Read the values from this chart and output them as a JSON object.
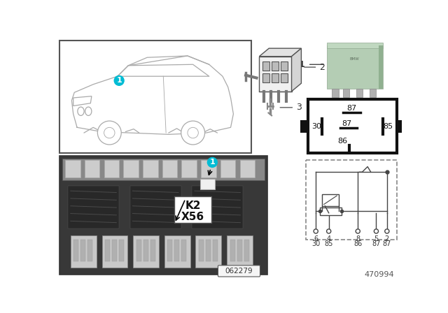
{
  "bg_color": "#ffffff",
  "teal_color": "#00bcd4",
  "relay_green": "#b8d4b0",
  "part_num": "470994",
  "diagram_ref": "062279",
  "dark_photo_bg": "#404040",
  "label_K2_X56": "K2\nX56"
}
